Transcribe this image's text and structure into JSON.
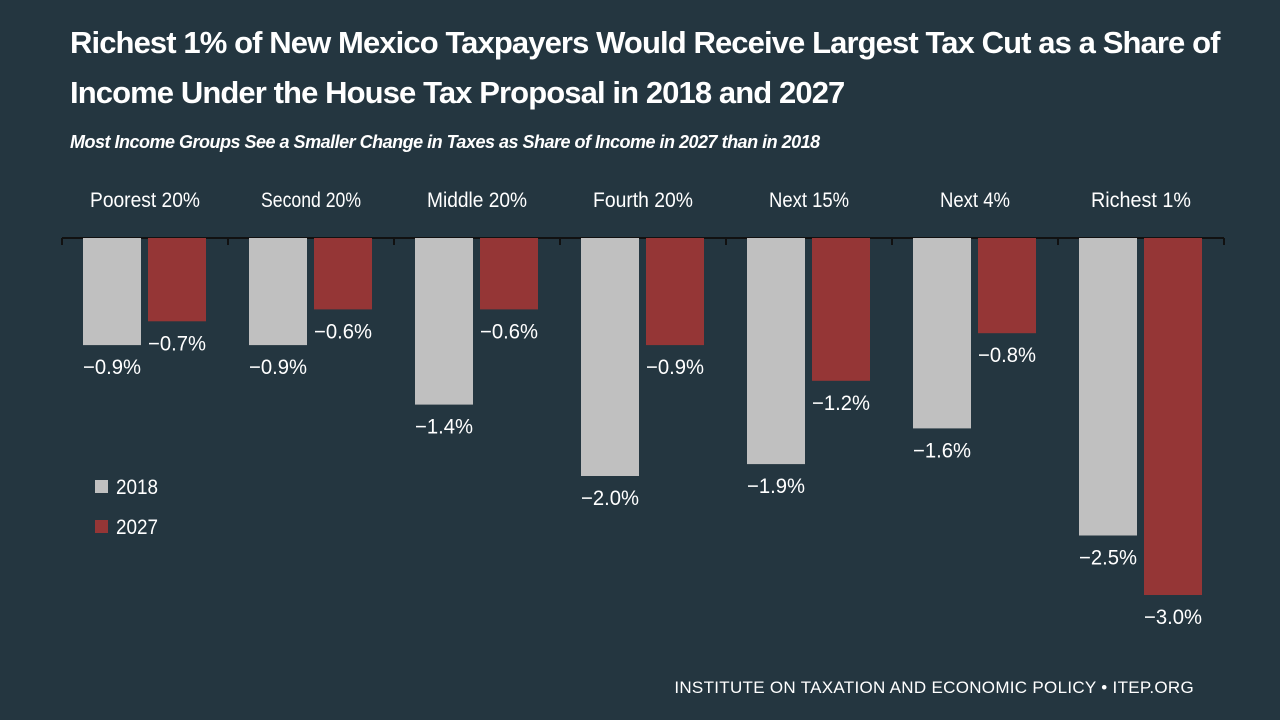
{
  "chart_data": {
    "type": "bar",
    "title": "Richest 1% of New Mexico Taxpayers Would Receive Largest Tax Cut as a Share of Income Under the House Tax Proposal in 2018 and 2027",
    "subtitle": "Most Income Groups See a Smaller Change in Taxes as Share of Income in 2027 than in 2018",
    "categories": [
      "Poorest 20%",
      "Second 20%",
      "Middle 20%",
      "Fourth 20%",
      "Next 15%",
      "Next 4%",
      "Richest 1%"
    ],
    "series": [
      {
        "name": "2018",
        "color": "#c0c0c0",
        "values": [
          -0.9,
          -0.9,
          -1.4,
          -2.0,
          -1.9,
          -1.6,
          -2.5
        ],
        "labels": [
          "−0.9%",
          "−0.9%",
          "−1.4%",
          "−2.0%",
          "−1.9%",
          "−1.6%",
          "−2.5%"
        ]
      },
      {
        "name": "2027",
        "color": "#953636",
        "values": [
          -0.7,
          -0.6,
          -0.6,
          -0.9,
          -1.2,
          -0.8,
          -3.0
        ],
        "labels": [
          "−0.7%",
          "−0.6%",
          "−0.6%",
          "−0.9%",
          "−1.2%",
          "−0.8%",
          "−3.0%"
        ]
      }
    ],
    "ylim": [
      -3.0,
      0
    ],
    "grid": false,
    "legend_placement": "left-middle"
  },
  "footer": "INSTITUTE ON TAXATION AND ECONOMIC POLICY • ITEP.ORG"
}
